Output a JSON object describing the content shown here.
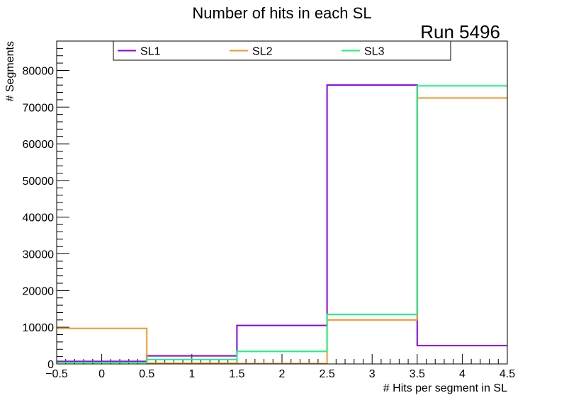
{
  "chart_data": {
    "type": "histogram",
    "title": "Number of hits in each SL",
    "annotation": "Run 5496",
    "xlabel": "# Hits per segment in SL",
    "ylabel": "# Segments",
    "xlim": [
      -0.5,
      4.5
    ],
    "ylim": [
      0,
      88000
    ],
    "xticks": [
      -0.5,
      0,
      0.5,
      1,
      1.5,
      2,
      2.5,
      3,
      3.5,
      4,
      4.5
    ],
    "xtick_labels": [
      "−0.5",
      "0",
      "0.5",
      "1",
      "1.5",
      "2",
      "2.5",
      "3",
      "3.5",
      "4",
      "4.5"
    ],
    "yticks": [
      0,
      10000,
      20000,
      30000,
      40000,
      50000,
      60000,
      70000,
      80000
    ],
    "ytick_labels": [
      "0",
      "10000",
      "20000",
      "30000",
      "40000",
      "50000",
      "60000",
      "70000",
      "80000"
    ],
    "bin_edges": [
      -0.5,
      0.5,
      1.5,
      2.5,
      3.5,
      4.5
    ],
    "grid": false,
    "legend_position": "top",
    "series": [
      {
        "name": "SL1",
        "color": "#8b00e6",
        "values": [
          700,
          2200,
          10500,
          76000,
          5000
        ]
      },
      {
        "name": "SL2",
        "color": "#f7952c",
        "values": [
          9700,
          200,
          100,
          12000,
          72500
        ]
      },
      {
        "name": "SL3",
        "color": "#19f57a",
        "values": [
          400,
          1200,
          3400,
          13500,
          75800
        ]
      }
    ]
  }
}
